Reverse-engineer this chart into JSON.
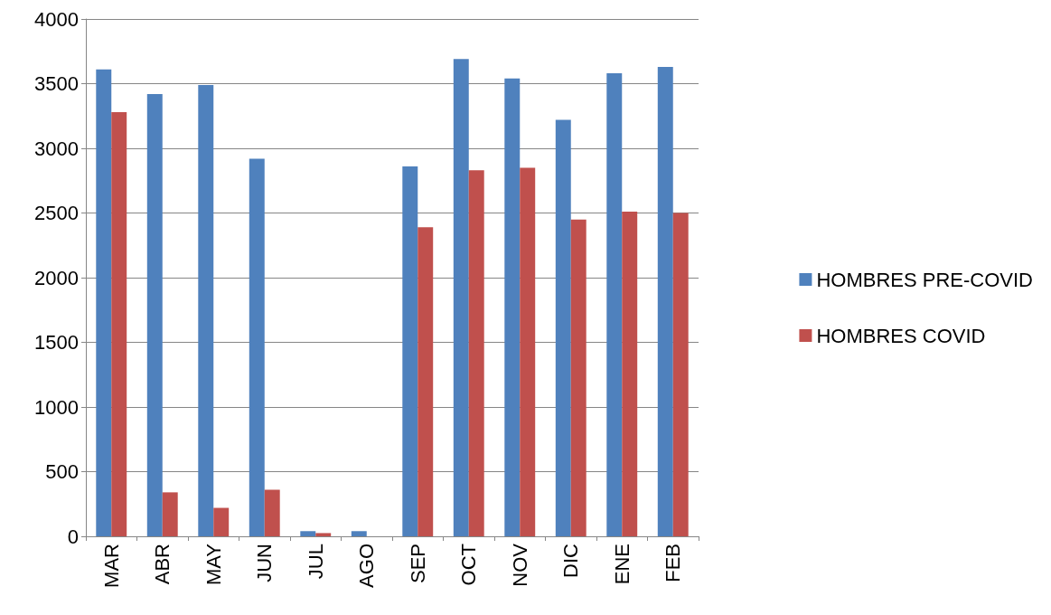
{
  "chart_data": {
    "type": "bar",
    "categories": [
      "MAR",
      "ABR",
      "MAY",
      "JUN",
      "JUL",
      "AGO",
      "SEP",
      "OCT",
      "NOV",
      "DIC",
      "ENE",
      "FEB"
    ],
    "series": [
      {
        "name": "HOMBRES PRE-COVID",
        "color": "#4f81bd",
        "values": [
          3610,
          3420,
          3490,
          2920,
          40,
          40,
          2860,
          3690,
          3540,
          3220,
          3580,
          3630
        ]
      },
      {
        "name": "HOMBRES COVID",
        "color": "#c0504d",
        "values": [
          3280,
          340,
          220,
          360,
          25,
          0,
          2390,
          2830,
          2850,
          2450,
          2510,
          2500
        ]
      }
    ],
    "ylim": [
      0,
      4000
    ],
    "yticks": [
      0,
      500,
      1000,
      1500,
      2000,
      2500,
      3000,
      3500,
      4000
    ],
    "grid": "y",
    "legend": "right"
  }
}
